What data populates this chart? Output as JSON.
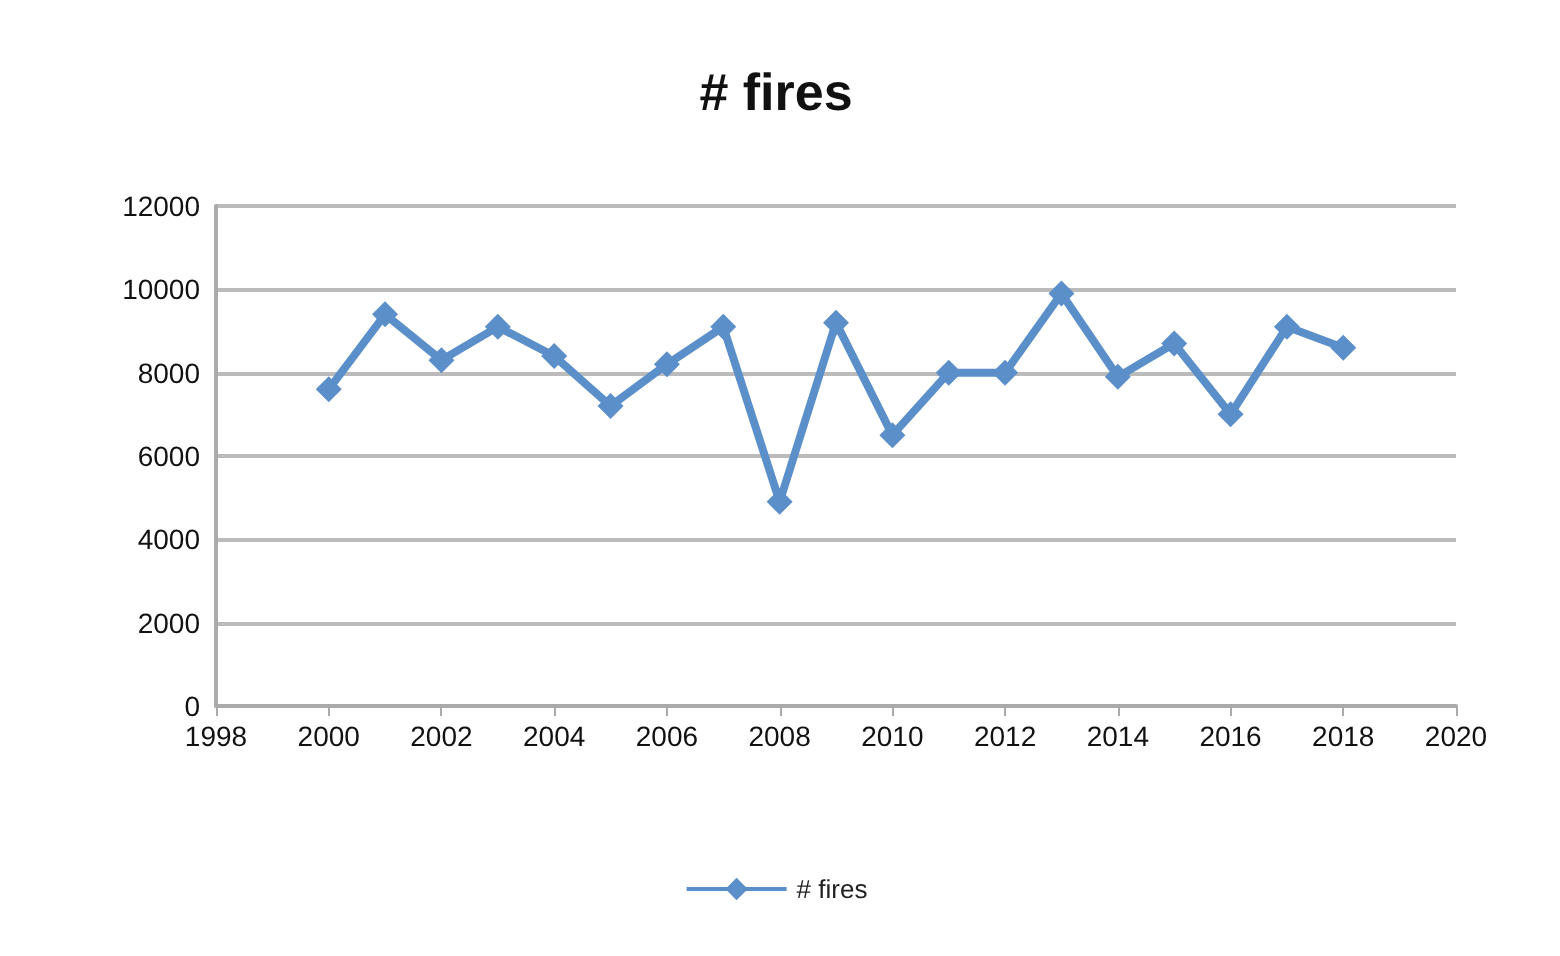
{
  "chart_data": {
    "type": "line",
    "title": "# fires",
    "x": [
      2000,
      2001,
      2002,
      2003,
      2004,
      2005,
      2006,
      2007,
      2008,
      2009,
      2010,
      2011,
      2012,
      2013,
      2014,
      2015,
      2016,
      2017,
      2018
    ],
    "series": [
      {
        "name": "# fires",
        "color": "#5b8fc9",
        "values": [
          7600,
          9400,
          8300,
          9100,
          8400,
          7200,
          8200,
          9100,
          4900,
          9200,
          6500,
          8000,
          8000,
          9900,
          7900,
          8700,
          7000,
          9100,
          8600
        ]
      }
    ],
    "xlim": [
      1998,
      2020
    ],
    "xticks": [
      1998,
      2000,
      2002,
      2004,
      2006,
      2008,
      2010,
      2012,
      2014,
      2016,
      2018,
      2020
    ],
    "ylim": [
      0,
      12000
    ],
    "yticks": [
      0,
      2000,
      4000,
      6000,
      8000,
      10000,
      12000
    ],
    "grid": "y",
    "legend": "bottom",
    "marker": "diamond",
    "line_style": "solid"
  }
}
